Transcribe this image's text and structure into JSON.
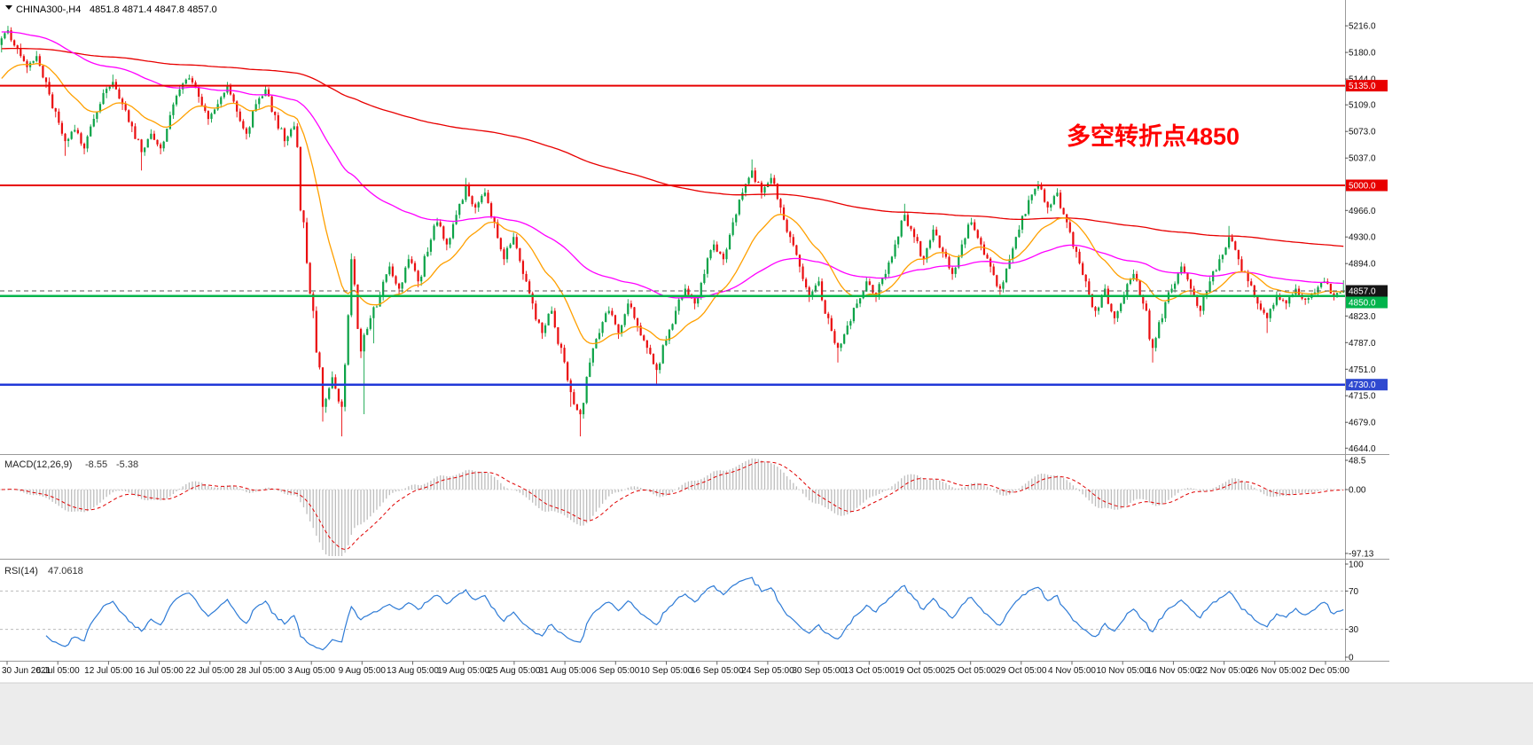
{
  "header": {
    "symbol_with_tf": "CHINA300-,H4",
    "ohlc_text": "4851.8 4871.4 4847.8 4857.0"
  },
  "annotation": {
    "text": "多空转折点4850",
    "color": "#ff0000"
  },
  "chart_data": {
    "type": "candlestick",
    "symbol": "CHINA300-",
    "timeframe": "H4",
    "up_color": "#0da348",
    "down_color": "#ea0e10",
    "y_axis": {
      "ticks": [
        "5216.0",
        "5180.0",
        "5144.0",
        "5109.0",
        "5073.0",
        "5037.0",
        "4966.0",
        "4930.0",
        "4894.0",
        "4823.0",
        "4787.0",
        "4751.0",
        "4715.0",
        "4679.0",
        "4644.0"
      ],
      "price_range": [
        4636,
        5251
      ]
    },
    "x_axis": {
      "labels": [
        "30 Jun 2021",
        "6 Jul 05:00",
        "12 Jul 05:00",
        "16 Jul 05:00",
        "22 Jul 05:00",
        "28 Jul 05:00",
        "3 Aug 05:00",
        "9 Aug 05:00",
        "13 Aug 05:00",
        "19 Aug 05:00",
        "25 Aug 05:00",
        "31 Aug 05:00",
        "6 Sep 05:00",
        "10 Sep 05:00",
        "16 Sep 05:00",
        "24 Sep 05:00",
        "30 Sep 05:00",
        "13 Oct 05:00",
        "19 Oct 05:00",
        "25 Oct 05:00",
        "29 Oct 05:00",
        "4 Nov 05:00",
        "10 Nov 05:00",
        "16 Nov 05:00",
        "22 Nov 05:00",
        "26 Nov 05:00",
        "2 Dec 05:00"
      ]
    },
    "horizontal_lines": [
      {
        "label": "5135.0",
        "value": 5135.0,
        "color": "#e80000",
        "badge_color": "#e80000",
        "width": 2,
        "dashed": false
      },
      {
        "label": "5000.0",
        "value": 5000.0,
        "color": "#e80000",
        "badge_color": "#e80000",
        "width": 2,
        "dashed": false
      },
      {
        "label": "4857.0",
        "value": 4857.0,
        "color": "#555555",
        "badge_color": "#151515",
        "width": 1,
        "dashed": true
      },
      {
        "label": "4850.0",
        "value": 4850.0,
        "color": "#00b44c",
        "badge_color": "#00b44c",
        "width": 2.5,
        "dashed": false
      },
      {
        "label": "4730.0",
        "value": 4730.0,
        "color": "#2038d8",
        "badge_color": "#2f49d0",
        "width": 2.5,
        "dashed": false
      }
    ],
    "moving_averages": [
      {
        "name": "slow-ma",
        "color": "#e80000"
      },
      {
        "name": "mid-ma",
        "color": "#ff00ff"
      },
      {
        "name": "fast-ma",
        "color": "#ffa000"
      }
    ],
    "candles": [
      [
        5190,
        5216,
        5180,
        5210
      ],
      [
        5210,
        5214,
        5178,
        5185
      ],
      [
        5185,
        5192,
        5152,
        5160
      ],
      [
        5160,
        5182,
        5155,
        5175
      ],
      [
        5175,
        5178,
        5132,
        5140
      ],
      [
        5140,
        5146,
        5092,
        5100
      ],
      [
        5100,
        5104,
        5040,
        5060
      ],
      [
        5060,
        5082,
        5052,
        5075
      ],
      [
        5075,
        5078,
        5042,
        5050
      ],
      [
        5050,
        5096,
        5045,
        5090
      ],
      [
        5090,
        5130,
        5085,
        5125
      ],
      [
        5125,
        5150,
        5118,
        5140
      ],
      [
        5140,
        5144,
        5102,
        5110
      ],
      [
        5110,
        5114,
        5072,
        5080
      ],
      [
        5080,
        5084,
        5020,
        5045
      ],
      [
        5045,
        5076,
        5040,
        5070
      ],
      [
        5070,
        5074,
        5042,
        5050
      ],
      [
        5050,
        5100,
        5046,
        5095
      ],
      [
        5095,
        5136,
        5090,
        5130
      ],
      [
        5130,
        5150,
        5124,
        5145
      ],
      [
        5145,
        5148,
        5112,
        5120
      ],
      [
        5120,
        5124,
        5082,
        5090
      ],
      [
        5090,
        5116,
        5085,
        5110
      ],
      [
        5110,
        5140,
        5105,
        5135
      ],
      [
        5135,
        5138,
        5092,
        5100
      ],
      [
        5100,
        5104,
        5062,
        5070
      ],
      [
        5070,
        5116,
        5065,
        5110
      ],
      [
        5110,
        5134,
        5104,
        5130
      ],
      [
        5130,
        5133,
        5088,
        5095
      ],
      [
        5095,
        5099,
        5052,
        5060
      ],
      [
        5060,
        5086,
        5054,
        5080
      ],
      [
        5080,
        5084,
        4942,
        4950
      ],
      [
        4950,
        4956,
        4820,
        4830
      ],
      [
        4830,
        4836,
        4680,
        4700
      ],
      [
        4700,
        4748,
        4692,
        4740
      ],
      [
        4740,
        4744,
        4660,
        4700
      ],
      [
        4700,
        4908,
        4694,
        4900
      ],
      [
        4900,
        4904,
        4766,
        4775
      ],
      [
        4775,
        4824,
        4690,
        4820
      ],
      [
        4820,
        4856,
        4786,
        4850
      ],
      [
        4850,
        4896,
        4844,
        4890
      ],
      [
        4890,
        4894,
        4852,
        4860
      ],
      [
        4860,
        4906,
        4855,
        4900
      ],
      [
        4900,
        4904,
        4862,
        4870
      ],
      [
        4870,
        4916,
        4864,
        4910
      ],
      [
        4910,
        4956,
        4905,
        4950
      ],
      [
        4950,
        4954,
        4912,
        4920
      ],
      [
        4920,
        4966,
        4915,
        4960
      ],
      [
        4960,
        5010,
        4955,
        5000
      ],
      [
        5000,
        5004,
        4962,
        4970
      ],
      [
        4970,
        4996,
        4964,
        4990
      ],
      [
        4990,
        4994,
        4942,
        4950
      ],
      [
        4950,
        4954,
        4892,
        4900
      ],
      [
        4900,
        4936,
        4895,
        4930
      ],
      [
        4930,
        4934,
        4872,
        4880
      ],
      [
        4880,
        4884,
        4832,
        4840
      ],
      [
        4840,
        4844,
        4792,
        4800
      ],
      [
        4800,
        4836,
        4795,
        4830
      ],
      [
        4830,
        4834,
        4772,
        4780
      ],
      [
        4780,
        4784,
        4700,
        4720
      ],
      [
        4720,
        4724,
        4660,
        4690
      ],
      [
        4690,
        4766,
        4684,
        4760
      ],
      [
        4760,
        4806,
        4755,
        4800
      ],
      [
        4800,
        4836,
        4795,
        4830
      ],
      [
        4830,
        4834,
        4792,
        4800
      ],
      [
        4800,
        4846,
        4795,
        4840
      ],
      [
        4840,
        4844,
        4802,
        4810
      ],
      [
        4810,
        4814,
        4772,
        4780
      ],
      [
        4780,
        4784,
        4730,
        4750
      ],
      [
        4750,
        4796,
        4745,
        4790
      ],
      [
        4790,
        4836,
        4785,
        4830
      ],
      [
        4830,
        4866,
        4825,
        4860
      ],
      [
        4860,
        4864,
        4832,
        4840
      ],
      [
        4840,
        4886,
        4835,
        4880
      ],
      [
        4880,
        4926,
        4875,
        4920
      ],
      [
        4920,
        4924,
        4892,
        4900
      ],
      [
        4900,
        4956,
        4895,
        4950
      ],
      [
        4950,
        4996,
        4945,
        4990
      ],
      [
        4990,
        5035,
        4985,
        5020
      ],
      [
        5020,
        5024,
        4982,
        4990
      ],
      [
        4990,
        5016,
        4985,
        5010
      ],
      [
        5010,
        5014,
        4962,
        4970
      ],
      [
        4970,
        4974,
        4922,
        4930
      ],
      [
        4930,
        4934,
        4882,
        4890
      ],
      [
        4890,
        4894,
        4842,
        4850
      ],
      [
        4850,
        4876,
        4845,
        4870
      ],
      [
        4870,
        4874,
        4812,
        4820
      ],
      [
        4820,
        4824,
        4760,
        4780
      ],
      [
        4780,
        4816,
        4775,
        4810
      ],
      [
        4810,
        4846,
        4805,
        4840
      ],
      [
        4840,
        4876,
        4835,
        4870
      ],
      [
        4870,
        4874,
        4842,
        4850
      ],
      [
        4850,
        4886,
        4845,
        4880
      ],
      [
        4880,
        4926,
        4875,
        4920
      ],
      [
        4920,
        4975,
        4915,
        4960
      ],
      [
        4960,
        4964,
        4922,
        4930
      ],
      [
        4930,
        4934,
        4892,
        4900
      ],
      [
        4900,
        4946,
        4895,
        4940
      ],
      [
        4940,
        4944,
        4902,
        4910
      ],
      [
        4910,
        4914,
        4872,
        4880
      ],
      [
        4880,
        4926,
        4875,
        4920
      ],
      [
        4920,
        4956,
        4915,
        4950
      ],
      [
        4950,
        4954,
        4912,
        4920
      ],
      [
        4920,
        4924,
        4882,
        4890
      ],
      [
        4890,
        4894,
        4852,
        4860
      ],
      [
        4860,
        4906,
        4855,
        4900
      ],
      [
        4900,
        4946,
        4895,
        4940
      ],
      [
        4940,
        4986,
        4935,
        4980
      ],
      [
        4980,
        5006,
        4975,
        5000
      ],
      [
        5000,
        5004,
        4962,
        4970
      ],
      [
        4970,
        4996,
        4965,
        4990
      ],
      [
        4990,
        4994,
        4942,
        4950
      ],
      [
        4950,
        4954,
        4902,
        4910
      ],
      [
        4910,
        4914,
        4862,
        4870
      ],
      [
        4870,
        4874,
        4822,
        4830
      ],
      [
        4830,
        4866,
        4825,
        4860
      ],
      [
        4860,
        4864,
        4812,
        4820
      ],
      [
        4820,
        4856,
        4815,
        4850
      ],
      [
        4850,
        4886,
        4845,
        4880
      ],
      [
        4880,
        4884,
        4832,
        4840
      ],
      [
        4840,
        4844,
        4760,
        4780
      ],
      [
        4780,
        4826,
        4775,
        4820
      ],
      [
        4820,
        4866,
        4815,
        4860
      ],
      [
        4860,
        4896,
        4855,
        4890
      ],
      [
        4890,
        4894,
        4852,
        4860
      ],
      [
        4860,
        4864,
        4822,
        4830
      ],
      [
        4830,
        4876,
        4825,
        4870
      ],
      [
        4870,
        4906,
        4865,
        4900
      ],
      [
        4900,
        4945,
        4895,
        4930
      ],
      [
        4930,
        4934,
        4892,
        4900
      ],
      [
        4900,
        4904,
        4862,
        4870
      ],
      [
        4870,
        4874,
        4832,
        4840
      ],
      [
        4840,
        4844,
        4800,
        4820
      ],
      [
        4820,
        4856,
        4815,
        4850
      ],
      [
        4850,
        4854,
        4832,
        4840
      ],
      [
        4840,
        4866,
        4835,
        4860
      ],
      [
        4860,
        4864,
        4838,
        4845
      ],
      [
        4845,
        4860,
        4840,
        4855
      ],
      [
        4855,
        4875,
        4850,
        4870
      ],
      [
        4870,
        4874,
        4844,
        4850
      ],
      [
        4851.8,
        4871.4,
        4847.8,
        4857.0
      ]
    ]
  },
  "indicators": {
    "macd": {
      "label": "MACD(12,26,9)",
      "value_main": "-8.55",
      "value_signal": "-5.38",
      "scale": [
        "48.5",
        "0.00",
        "-97.13"
      ],
      "histogram_color": "#bdbdbd",
      "signal_color": "#e00000"
    },
    "rsi": {
      "label": "RSI(14)",
      "value": "47.0618",
      "scale": [
        "100",
        "70",
        "30",
        "0"
      ],
      "levels": [
        70,
        30
      ],
      "line_color": "#2e7bd6"
    }
  }
}
